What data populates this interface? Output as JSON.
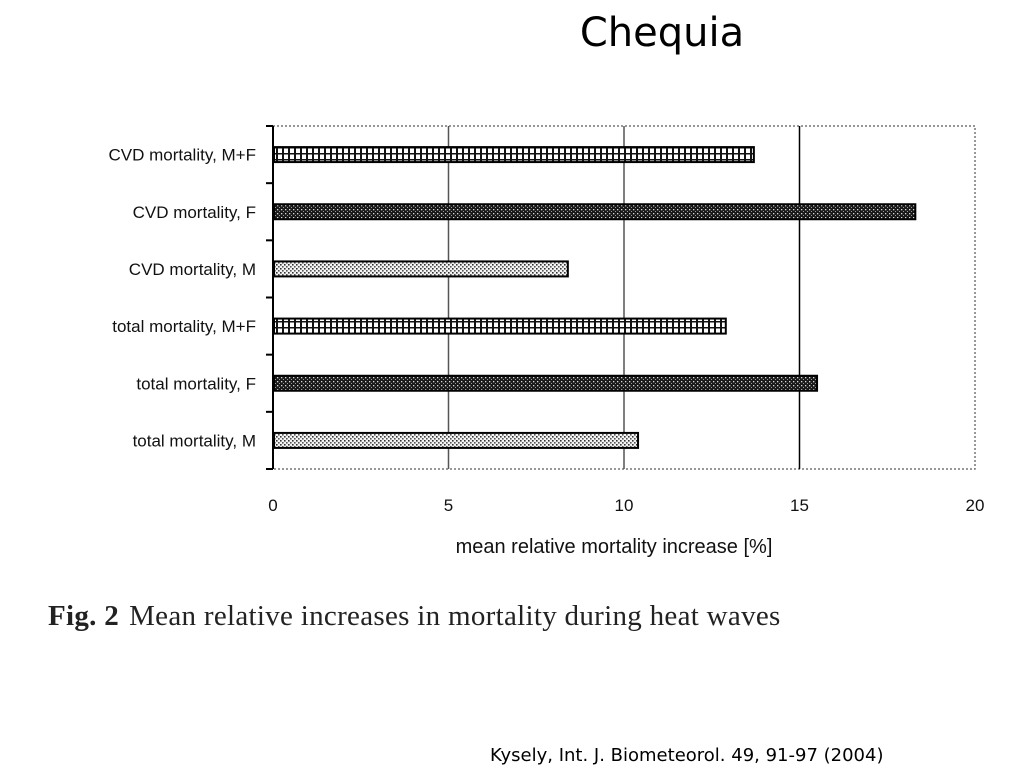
{
  "slide": {
    "title": "Chequia",
    "reference": "Kysely, Int. J. Biometeorol. 49, 91-97 (2004)"
  },
  "caption": {
    "label": "Fig. 2",
    "text": "Mean relative increases in mortality during heat waves"
  },
  "chart_data": {
    "type": "bar",
    "orientation": "horizontal",
    "categories": [
      "CVD mortality, M+F",
      "CVD mortality, F",
      "CVD mortality, M",
      "total mortality, M+F",
      "total mortality, F",
      "total mortality, M"
    ],
    "values": [
      13.7,
      18.3,
      8.4,
      12.9,
      15.5,
      10.4
    ],
    "xlabel": "mean relative mortality increase [%]",
    "ylabel": "",
    "xlim": [
      0,
      20
    ],
    "xticks": [
      0,
      5,
      10,
      15,
      20
    ],
    "xtick_labels": [
      "0",
      "5",
      "10",
      "15",
      "20"
    ],
    "grid": "vertical lines at 5, 10, 15",
    "bar_patterns": [
      "cross-hatch",
      "dark-dotted",
      "light-dotted",
      "cross-hatch",
      "dark-dotted",
      "light-dotted"
    ]
  }
}
